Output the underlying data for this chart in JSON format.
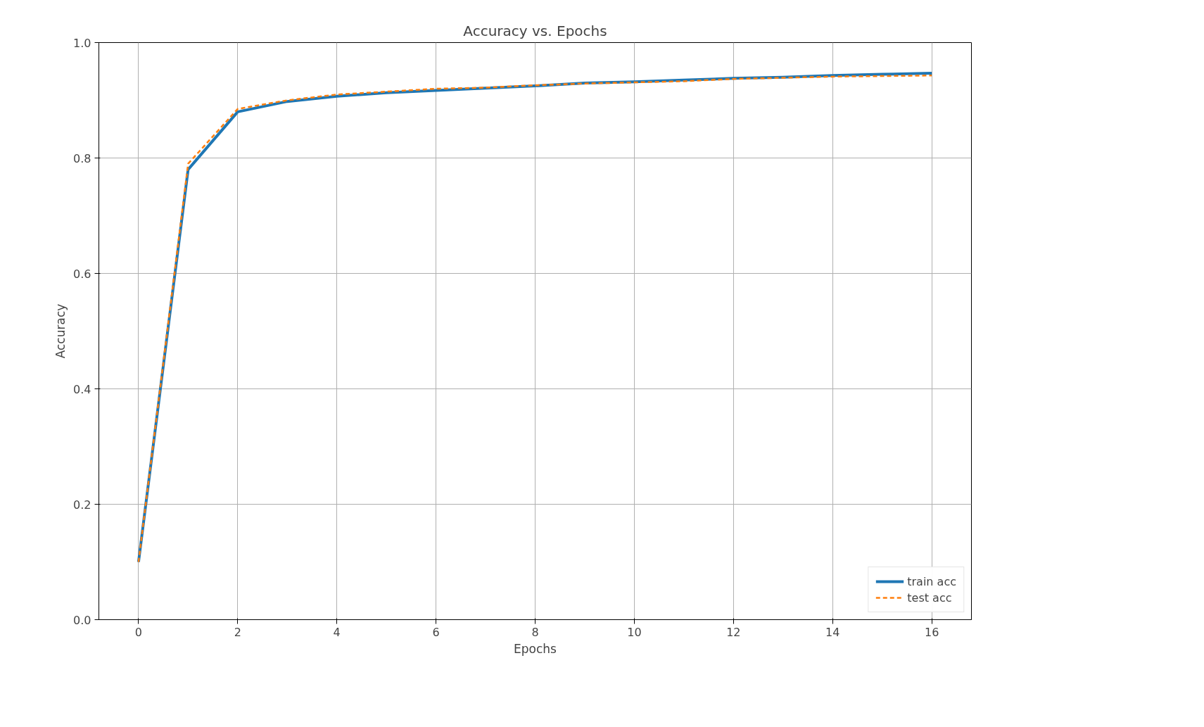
{
  "chart_data": {
    "type": "line",
    "title": "Accuracy vs. Epochs",
    "xlabel": "Epochs",
    "ylabel": "Accuracy",
    "x": [
      0,
      1,
      2,
      3,
      4,
      5,
      6,
      7,
      8,
      9,
      10,
      11,
      12,
      13,
      14,
      15,
      16
    ],
    "series": [
      {
        "name": "train acc",
        "color": "#1f77b4",
        "line_style": "solid",
        "values": [
          0.1,
          0.78,
          0.88,
          0.898,
          0.907,
          0.913,
          0.917,
          0.921,
          0.925,
          0.93,
          0.932,
          0.935,
          0.938,
          0.94,
          0.943,
          0.945,
          0.947
        ]
      },
      {
        "name": "test acc",
        "color": "#ff7f0e",
        "line_style": "dashed",
        "values": [
          0.1,
          0.79,
          0.885,
          0.9,
          0.91,
          0.915,
          0.92,
          0.922,
          0.926,
          0.929,
          0.931,
          0.933,
          0.937,
          0.939,
          0.941,
          0.942,
          0.943
        ]
      }
    ],
    "xlim": [
      -0.8,
      16.8
    ],
    "ylim": [
      0.0,
      1.0
    ],
    "xticks": [
      0,
      2,
      4,
      6,
      8,
      10,
      12,
      14,
      16
    ],
    "yticks": [
      {
        "value": 0.0,
        "label": "0.0"
      },
      {
        "value": 0.2,
        "label": "0.2"
      },
      {
        "value": 0.4,
        "label": "0.4"
      },
      {
        "value": 0.6,
        "label": "0.6"
      },
      {
        "value": 0.8,
        "label": "0.8"
      },
      {
        "value": 1.0,
        "label": "1.0"
      }
    ],
    "grid": true,
    "legend": "bottom right",
    "marker": "none"
  }
}
